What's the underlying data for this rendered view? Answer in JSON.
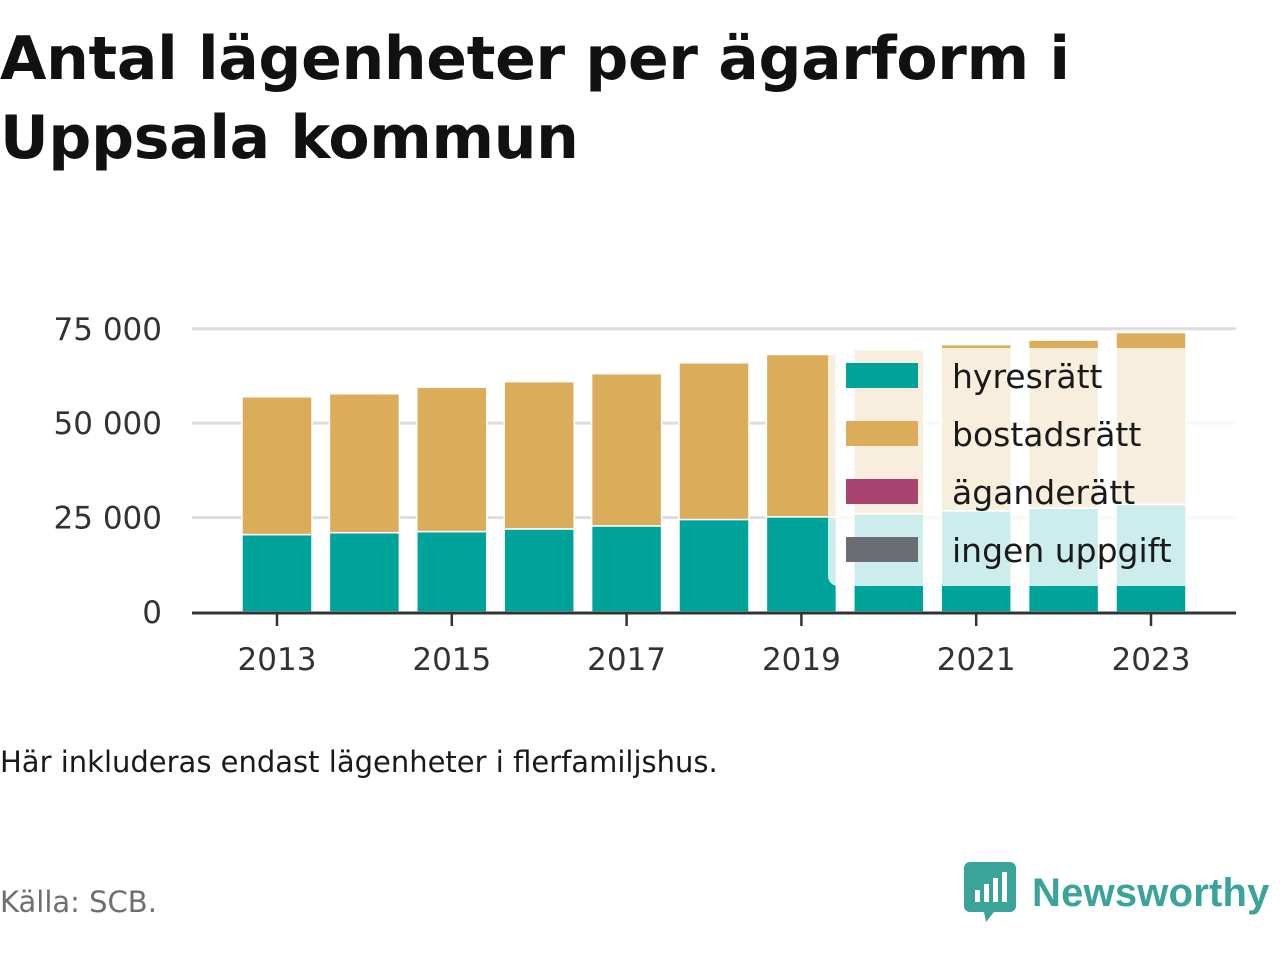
{
  "title": "Antal lägenheter per ägarform i Uppsala kommun",
  "note": "Här inkluderas endast lägenheter i flerfamiljshus.",
  "source": "Källa: SCB.",
  "brand": {
    "name": "Newsworthy",
    "icon": "newsworthy-logo-icon",
    "color": "#3aa39a"
  },
  "chart_data": {
    "type": "bar",
    "stacked": true,
    "title": "Antal lägenheter per ägarform i Uppsala kommun",
    "xlabel": "",
    "ylabel": "",
    "categories": [
      "2013",
      "2014",
      "2015",
      "2016",
      "2017",
      "2018",
      "2019",
      "2020",
      "2021",
      "2022",
      "2023"
    ],
    "x_tick_labels": [
      "2013",
      "2015",
      "2017",
      "2019",
      "2021",
      "2023"
    ],
    "y_ticks": [
      0,
      25000,
      50000,
      75000
    ],
    "y_tick_labels": [
      "0",
      "25 000",
      "50 000",
      "75 000"
    ],
    "ylim": [
      0,
      76000
    ],
    "grid": true,
    "legend_position": "top-right",
    "series": [
      {
        "name": "hyresrätt",
        "color": "#00a39a",
        "values": [
          20500,
          21000,
          21300,
          22000,
          22800,
          24500,
          25200,
          26000,
          26800,
          27500,
          28500
        ]
      },
      {
        "name": "bostadsrätt",
        "color": "#dbac5a",
        "values": [
          36500,
          36800,
          38200,
          39000,
          40300,
          41500,
          43000,
          43500,
          44000,
          44500,
          45500
        ]
      },
      {
        "name": "äganderätt",
        "color": "#a8436f",
        "values": [
          0,
          0,
          0,
          0,
          0,
          0,
          0,
          0,
          0,
          0,
          0
        ]
      },
      {
        "name": "ingen uppgift",
        "color": "#6c6c73",
        "values": [
          0,
          0,
          0,
          0,
          0,
          0,
          0,
          0,
          0,
          0,
          0
        ]
      }
    ]
  }
}
